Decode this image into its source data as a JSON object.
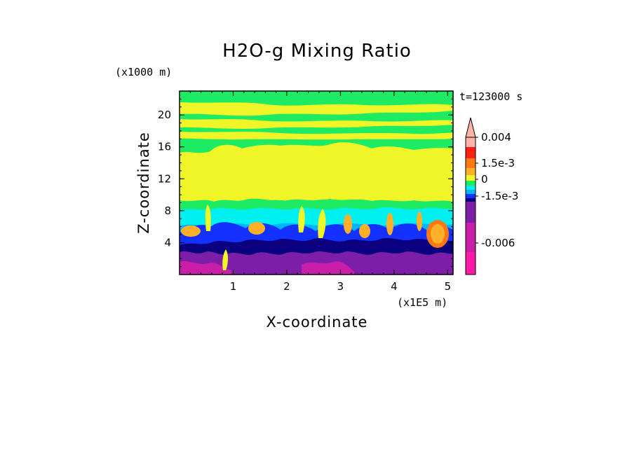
{
  "chart_data": {
    "type": "heatmap",
    "title": "H2O-g Mixing Ratio",
    "xlabel": "X-coordinate",
    "ylabel": "Z-coordinate",
    "x_unit": "(x1E5 m)",
    "y_unit": "(x1000 m)",
    "time_label": "t=123000 s",
    "xlim": [
      0,
      5.1
    ],
    "ylim": [
      0,
      23
    ],
    "x_ticks": [
      "1",
      "2",
      "3",
      "4",
      "5"
    ],
    "x_tick_values": [
      1,
      2,
      3,
      4,
      5
    ],
    "y_ticks": [
      "4",
      "8",
      "12",
      "16",
      "20"
    ],
    "y_tick_values": [
      4,
      8,
      12,
      16,
      20
    ],
    "colorbar": {
      "labels": [
        "0.004",
        "1.5e-3",
        "0",
        "-1.5e-3",
        "-0.006"
      ],
      "label_values": [
        0.004,
        0.0015,
        0,
        -0.0015,
        -0.006
      ],
      "levels": [
        {
          "color": "#ff1aa8",
          "value": -0.008
        },
        {
          "color": "#c81ea8",
          "value": -0.006
        },
        {
          "color": "#7d1ea8",
          "value": -0.003
        },
        {
          "color": "#0a007f",
          "value": -0.0015
        },
        {
          "color": "#1432ff",
          "value": -0.001
        },
        {
          "color": "#00b4ff",
          "value": -0.0005
        },
        {
          "color": "#00f0f0",
          "value": -0.00025
        },
        {
          "color": "#1eeb64",
          "value": 0
        },
        {
          "color": "#f0f528",
          "value": 0.0005
        },
        {
          "color": "#ffaf28",
          "value": 0.001
        },
        {
          "color": "#ff7814",
          "value": 0.0015
        },
        {
          "color": "#ff1e14",
          "value": 0.003
        },
        {
          "color": "#ffb4aa",
          "value": 0.004
        }
      ]
    },
    "field_description_levels_by_height": [
      {
        "z_range": [
          0,
          3
        ],
        "dominant": "-0.003 to -0.006"
      },
      {
        "z_range": [
          3,
          6.5
        ],
        "dominant": "-0.0015 to -0.001"
      },
      {
        "z_range": [
          6.5,
          9
        ],
        "dominant": "-0.00025 to 0"
      },
      {
        "z_range": [
          9,
          16
        ],
        "dominant": "0.0005"
      },
      {
        "z_range": [
          16,
          23
        ],
        "dominant": "0 to 0.0005"
      }
    ]
  }
}
